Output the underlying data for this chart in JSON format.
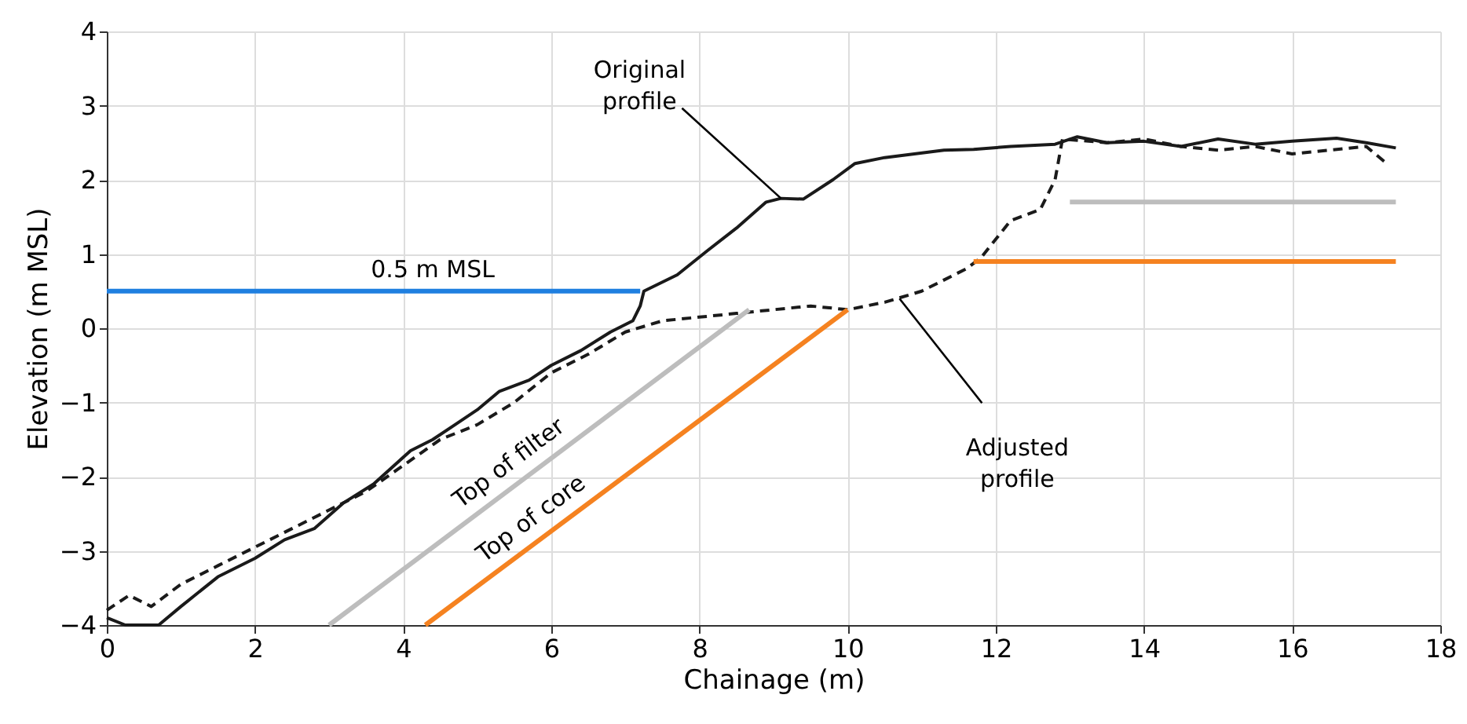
{
  "chart_data": {
    "type": "line",
    "xlabel": "Chainage (m)",
    "ylabel": "Elevation (m MSL)",
    "xlim": [
      0,
      18
    ],
    "ylim": [
      -4,
      4
    ],
    "xticks": [
      0,
      2,
      4,
      6,
      8,
      10,
      12,
      14,
      16,
      18
    ],
    "yticks": [
      -4,
      -3,
      -2,
      -1,
      0,
      1,
      2,
      3,
      4
    ],
    "grid": true,
    "legend": false,
    "marker": "none",
    "series": [
      {
        "color": "#1a1a1a",
        "line_style": "solid",
        "x": [
          0,
          0.25,
          0.7,
          1.0,
          1.5,
          2.0,
          2.4,
          2.8,
          3.2,
          3.6,
          4.1,
          4.4,
          4.7,
          5.0,
          5.3,
          5.7,
          6.0,
          6.4,
          6.8,
          7.1,
          7.2,
          7.25,
          7.7,
          8.1,
          8.5,
          8.9,
          9.1,
          9.4,
          9.8,
          10.1,
          10.5,
          10.9,
          11.3,
          11.7,
          12.2,
          12.8,
          13.1,
          13.5,
          14.0,
          14.5,
          15.0,
          15.5,
          16.0,
          16.6,
          17.0,
          17.4
        ],
        "values": [
          -3.9,
          -4.0,
          -4.0,
          -3.75,
          -3.35,
          -3.1,
          -2.85,
          -2.7,
          -2.35,
          -2.1,
          -1.65,
          -1.5,
          -1.3,
          -1.1,
          -0.85,
          -0.7,
          -0.5,
          -0.3,
          -0.05,
          0.1,
          0.3,
          0.5,
          0.72,
          1.04,
          1.35,
          1.7,
          1.75,
          1.74,
          2.0,
          2.22,
          2.3,
          2.35,
          2.4,
          2.41,
          2.45,
          2.48,
          2.58,
          2.5,
          2.52,
          2.45,
          2.55,
          2.48,
          2.52,
          2.56,
          2.5,
          2.43
        ]
      },
      {
        "color": "#1a1a1a",
        "line_style": "dashed",
        "x": [
          0,
          0.3,
          0.6,
          1.0,
          1.5,
          2.0,
          2.5,
          3.0,
          3.5,
          4.0,
          4.5,
          5.0,
          5.5,
          6.0,
          6.5,
          7.0,
          7.5,
          8.0,
          8.5,
          9.0,
          9.5,
          10.0,
          10.5,
          11.0,
          11.6,
          11.8,
          12.2,
          12.6,
          12.8,
          12.9,
          13.5,
          14.0,
          14.5,
          15.0,
          15.5,
          16.0,
          16.5,
          17.0,
          17.3
        ],
        "values": [
          -3.8,
          -3.6,
          -3.75,
          -3.45,
          -3.2,
          -2.95,
          -2.7,
          -2.45,
          -2.2,
          -1.85,
          -1.5,
          -1.3,
          -1.0,
          -0.6,
          -0.35,
          -0.05,
          0.1,
          0.15,
          0.2,
          0.25,
          0.3,
          0.25,
          0.35,
          0.5,
          0.8,
          0.95,
          1.45,
          1.6,
          2.0,
          2.55,
          2.5,
          2.55,
          2.45,
          2.4,
          2.45,
          2.35,
          2.4,
          2.45,
          2.2
        ]
      },
      {
        "color": "#bdbdbd",
        "x": [
          3.0,
          8.67,
          null,
          13.0,
          17.4
        ],
        "values": [
          -4,
          0.25,
          null,
          1.7,
          1.7
        ]
      },
      {
        "color": "#f58220",
        "x": [
          4.3,
          10.0,
          null,
          11.7,
          17.4
        ],
        "values": [
          -4,
          0.25,
          null,
          0.9,
          0.9
        ]
      },
      {
        "color": "#1f7fe0",
        "x": [
          0,
          7.2
        ],
        "values": [
          0.5,
          0.5
        ]
      }
    ],
    "annotations": [
      {
        "text": "Original profile",
        "x": 9.1,
        "y": 1.75
      },
      {
        "text": "Adjusted profile",
        "x": 10.7,
        "y": 0.4
      },
      {
        "text": "Top of filter",
        "x": 5.6,
        "y": -2.05
      },
      {
        "text": "Top of core",
        "x": 5.9,
        "y": -2.8
      },
      {
        "text": "0.5 m MSL",
        "x": 4.4,
        "y": 0.5
      }
    ]
  }
}
